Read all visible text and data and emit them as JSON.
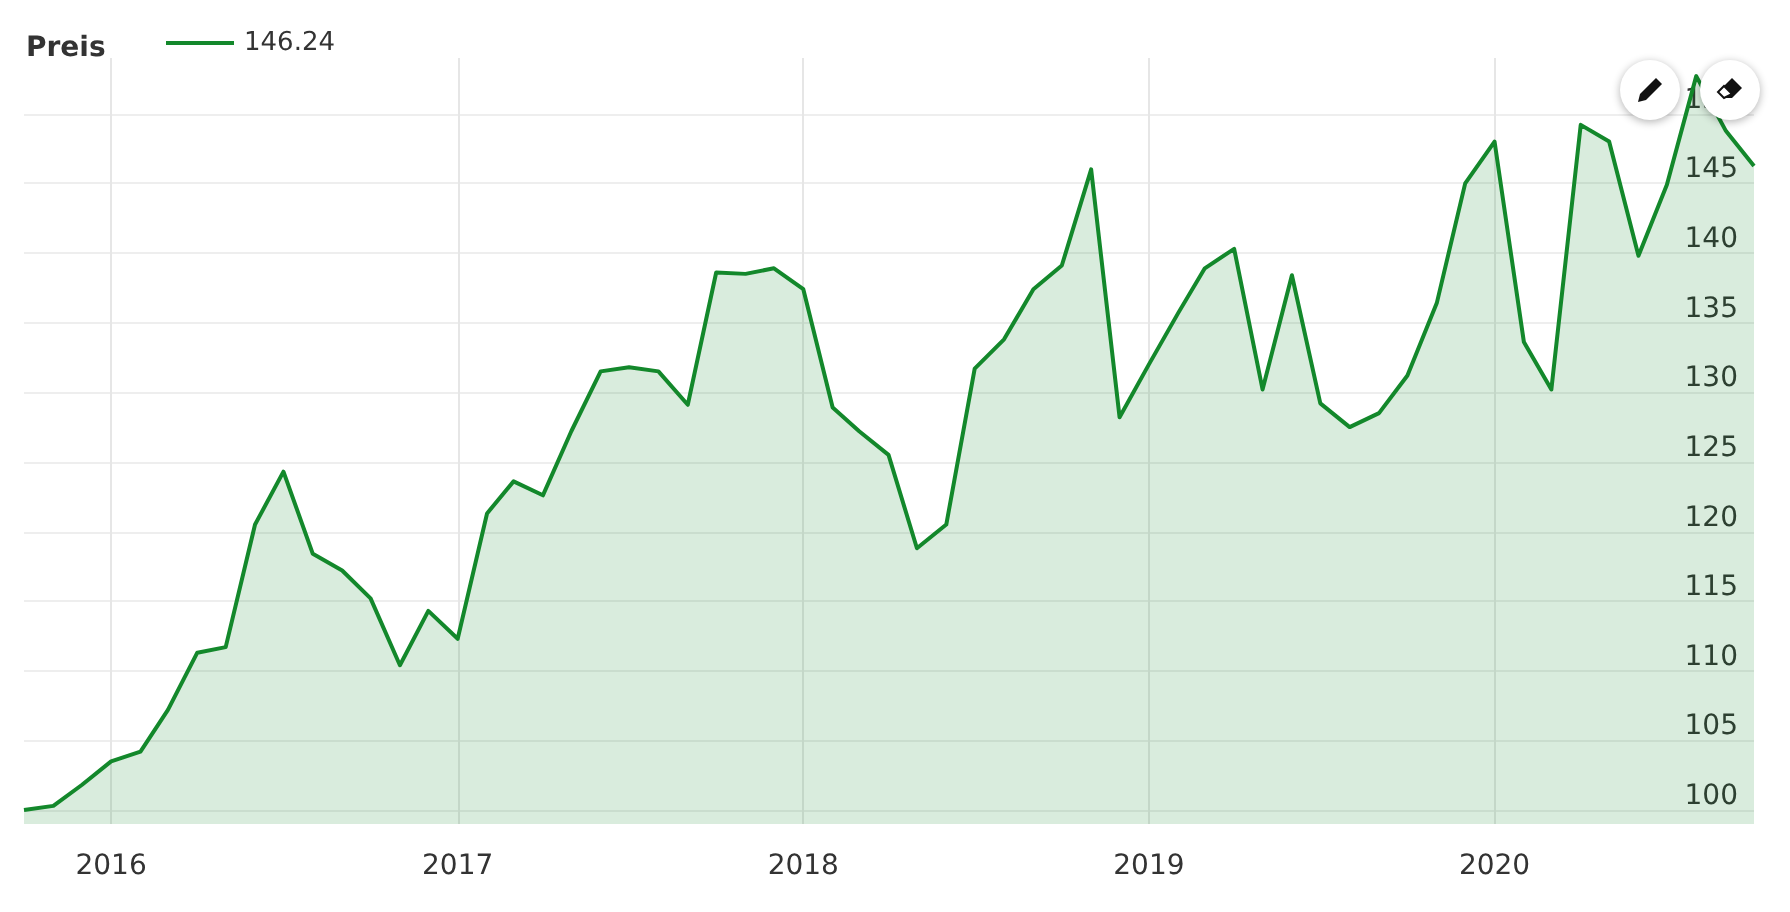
{
  "chart_data": {
    "type": "area",
    "title": "Preis",
    "legend": "top left",
    "grid": true,
    "marker": "none",
    "line_style": "solid",
    "x": [
      "2015-10",
      "2015-11",
      "2015-12",
      "2016-01",
      "2016-02",
      "2016-03",
      "2016-04",
      "2016-05",
      "2016-06",
      "2016-07",
      "2016-08",
      "2016-09",
      "2016-10",
      "2016-11",
      "2016-12",
      "2017-01",
      "2017-02",
      "2017-03",
      "2017-04",
      "2017-05",
      "2017-06",
      "2017-07",
      "2017-08",
      "2017-09",
      "2017-10",
      "2017-11",
      "2017-12",
      "2018-01",
      "2018-02",
      "2018-03",
      "2018-04",
      "2018-05",
      "2018-06",
      "2018-07",
      "2018-08",
      "2018-09",
      "2018-10",
      "2018-11",
      "2018-12",
      "2019-01",
      "2019-02",
      "2019-03",
      "2019-04",
      "2019-05",
      "2019-06",
      "2019-07",
      "2019-08",
      "2019-09",
      "2019-10",
      "2019-11",
      "2019-12",
      "2020-01",
      "2020-02",
      "2020-03",
      "2020-04",
      "2020-05",
      "2020-06",
      "2020-07",
      "2020-08",
      "2020-09",
      "2020-10"
    ],
    "series": [
      {
        "name": "146.24",
        "color": "#13882b",
        "values": [
          100.0,
          100.3,
          101.8,
          103.5,
          104.2,
          107.2,
          111.3,
          111.7,
          120.5,
          124.3,
          118.4,
          117.2,
          115.2,
          110.4,
          114.3,
          112.3,
          121.3,
          123.6,
          122.6,
          127.2,
          131.5,
          131.8,
          131.5,
          129.1,
          138.6,
          138.5,
          138.9,
          137.4,
          128.9,
          127.2,
          125.5,
          118.8,
          120.5,
          131.7,
          133.8,
          137.4,
          139.1,
          146.0,
          128.2,
          132.0,
          135.7,
          138.9,
          140.3,
          130.2,
          138.4,
          129.2,
          127.5,
          128.5,
          131.2,
          136.4,
          145.0,
          148.0,
          133.6,
          130.2,
          149.2,
          148.0,
          139.8,
          144.9,
          152.7,
          148.8,
          146.24
        ]
      }
    ],
    "xlim": [
      "2015-10",
      "2020-10"
    ],
    "xticks": [
      "2016",
      "2017",
      "2018",
      "2019",
      "2020"
    ],
    "ylim": [
      99,
      154
    ],
    "yticks": [
      100,
      105,
      110,
      115,
      120,
      125,
      130,
      135,
      140,
      145,
      150
    ]
  }
}
